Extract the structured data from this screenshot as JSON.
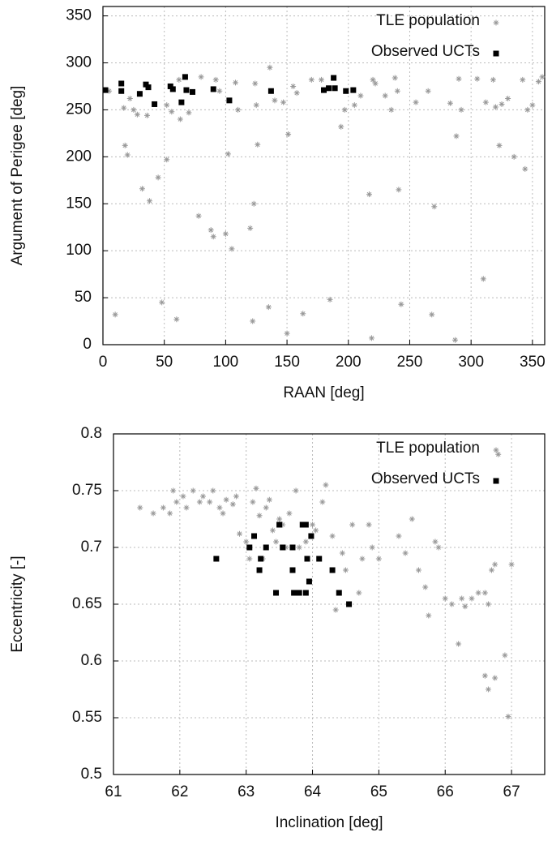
{
  "chart_data": [
    {
      "type": "scatter",
      "xlabel": "RAAN [deg]",
      "ylabel": "Argument of Perigee [deg]",
      "xlim": [
        0,
        360
      ],
      "ylim": [
        0,
        360
      ],
      "xticks": [
        0,
        50,
        100,
        150,
        200,
        250,
        300,
        350
      ],
      "yticks": [
        0,
        50,
        100,
        150,
        200,
        250,
        300,
        350
      ],
      "grid": true,
      "legend": "upper right",
      "series": [
        {
          "name": "TLE population",
          "color": "#999999",
          "marker": "star",
          "x": [
            5,
            10,
            17,
            18,
            20,
            22,
            25,
            28,
            32,
            36,
            38,
            45,
            48,
            52,
            52,
            56,
            60,
            62,
            63,
            70,
            78,
            80,
            88,
            90,
            92,
            95,
            100,
            102,
            105,
            108,
            110,
            120,
            122,
            123,
            124,
            125,
            126,
            135,
            136,
            140,
            147,
            150,
            151,
            155,
            158,
            163,
            170,
            178,
            185,
            194,
            197,
            205,
            210,
            217,
            219,
            220,
            222,
            230,
            235,
            238,
            240,
            241,
            243,
            255,
            265,
            268,
            270,
            283,
            287,
            288,
            290,
            292,
            305,
            310,
            312,
            318,
            320,
            323,
            325,
            330,
            335,
            342,
            344,
            346,
            350,
            355,
            358
          ],
          "y": [
            270,
            32,
            252,
            212,
            202,
            262,
            250,
            245,
            166,
            244,
            153,
            178,
            45,
            197,
            255,
            248,
            27,
            282,
            240,
            247,
            137,
            285,
            122,
            115,
            282,
            270,
            118,
            203,
            102,
            279,
            250,
            124,
            25,
            150,
            278,
            255,
            213,
            40,
            295,
            260,
            258,
            12,
            224,
            275,
            268,
            33,
            282,
            282,
            48,
            232,
            250,
            255,
            265,
            160,
            7,
            282,
            278,
            265,
            250,
            284,
            270,
            165,
            43,
            258,
            270,
            32,
            147,
            257,
            5,
            222,
            283,
            250,
            283,
            70,
            258,
            282,
            253,
            212,
            256,
            262,
            200,
            282,
            187,
            250,
            255,
            280,
            285
          ]
        },
        {
          "name": "Observed UCTs",
          "color": "#000000",
          "marker": "square",
          "x": [
            2,
            15,
            15,
            30,
            35,
            37,
            42,
            55,
            57,
            64,
            67,
            68,
            73,
            90,
            103,
            137,
            180,
            184,
            188,
            189,
            198,
            204
          ],
          "y": [
            271,
            278,
            270,
            267,
            277,
            274,
            256,
            275,
            272,
            258,
            285,
            271,
            269,
            272,
            260,
            270,
            271,
            273,
            284,
            273,
            270,
            271
          ]
        }
      ]
    },
    {
      "type": "scatter",
      "xlabel": "Inclination [deg]",
      "ylabel": "Eccentricity [-]",
      "xlim": [
        61,
        67.5
      ],
      "ylim": [
        0.5,
        0.8
      ],
      "xticks": [
        61,
        62,
        63,
        64,
        65,
        66,
        67
      ],
      "yticks": [
        0.5,
        0.55,
        0.6,
        0.65,
        0.7,
        0.75,
        0.8
      ],
      "grid": true,
      "legend": "upper right",
      "series": [
        {
          "name": "TLE population",
          "color": "#999999",
          "marker": "star",
          "x": [
            61.4,
            61.6,
            61.75,
            61.85,
            61.9,
            61.95,
            62.05,
            62.1,
            62.2,
            62.3,
            62.35,
            62.45,
            62.5,
            62.6,
            62.65,
            62.7,
            62.8,
            62.85,
            62.9,
            63.0,
            63.05,
            63.1,
            63.15,
            63.2,
            63.25,
            63.3,
            63.35,
            63.4,
            63.45,
            63.5,
            63.55,
            63.6,
            63.65,
            63.75,
            63.8,
            63.9,
            64.0,
            64.05,
            64.15,
            64.2,
            64.3,
            64.35,
            64.45,
            64.5,
            64.6,
            64.7,
            64.75,
            64.85,
            64.9,
            65.0,
            65.3,
            65.4,
            65.5,
            65.6,
            65.7,
            65.75,
            65.85,
            65.9,
            66.0,
            66.1,
            66.2,
            66.3,
            66.4,
            66.5,
            66.6,
            66.65,
            66.7,
            66.75,
            66.8,
            66.9,
            66.95,
            67.0,
            66.6,
            66.65,
            66.75,
            66.25
          ],
          "y": [
            0.735,
            0.73,
            0.735,
            0.73,
            0.75,
            0.74,
            0.745,
            0.735,
            0.75,
            0.74,
            0.745,
            0.74,
            0.75,
            0.735,
            0.73,
            0.742,
            0.738,
            0.745,
            0.712,
            0.705,
            0.69,
            0.74,
            0.752,
            0.728,
            0.69,
            0.735,
            0.742,
            0.715,
            0.705,
            0.725,
            0.72,
            0.7,
            0.73,
            0.75,
            0.7,
            0.705,
            0.72,
            0.715,
            0.74,
            0.755,
            0.71,
            0.645,
            0.695,
            0.68,
            0.72,
            0.66,
            0.69,
            0.72,
            0.7,
            0.69,
            0.71,
            0.695,
            0.725,
            0.68,
            0.665,
            0.64,
            0.705,
            0.7,
            0.655,
            0.65,
            0.615,
            0.648,
            0.655,
            0.66,
            0.66,
            0.65,
            0.68,
            0.685,
            0.782,
            0.605,
            0.551,
            0.685,
            0.587,
            0.575,
            0.585,
            0.655
          ]
        },
        {
          "name": "Observed UCTs",
          "color": "#000000",
          "marker": "square",
          "x": [
            62.55,
            63.05,
            63.12,
            63.2,
            63.22,
            63.3,
            63.45,
            63.5,
            63.55,
            63.7,
            63.7,
            63.72,
            63.8,
            63.85,
            63.9,
            63.9,
            63.92,
            63.95,
            63.98,
            64.1,
            64.3,
            64.4,
            64.55
          ],
          "y": [
            0.69,
            0.7,
            0.71,
            0.68,
            0.69,
            0.7,
            0.66,
            0.72,
            0.7,
            0.7,
            0.68,
            0.66,
            0.66,
            0.72,
            0.66,
            0.72,
            0.69,
            0.67,
            0.71,
            0.69,
            0.68,
            0.66,
            0.65
          ]
        }
      ]
    }
  ]
}
